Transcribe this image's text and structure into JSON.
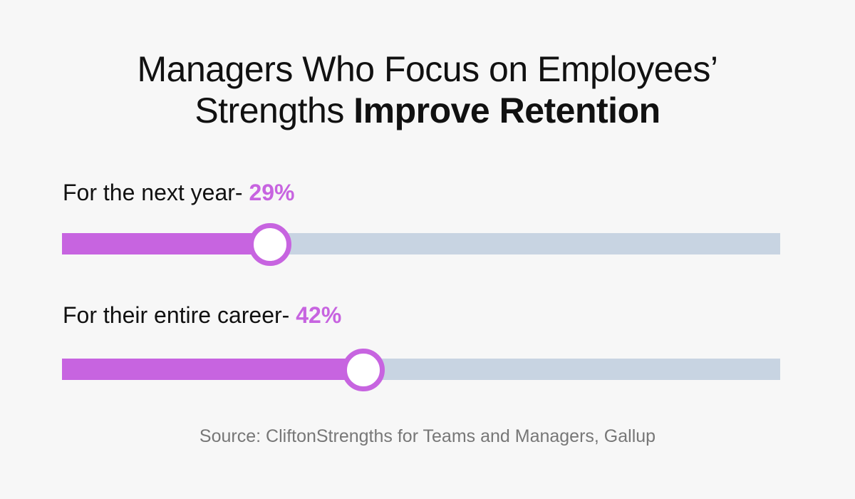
{
  "title": {
    "regular": "Managers Who Focus on Employees’",
    "line2_regular": "Strengths ",
    "bold": "Improve Retention"
  },
  "colors": {
    "accent": "#c764e0",
    "track": "#c8d4e2",
    "background": "#f7f7f7"
  },
  "chart_data": {
    "type": "bar",
    "title": "Managers Who Focus on Employees’ Strengths Improve Retention",
    "categories": [
      "For the next year",
      "For their entire career"
    ],
    "values": [
      29,
      42
    ],
    "ylim": [
      0,
      100
    ],
    "labels": [
      {
        "text": "For the next year- ",
        "value_text": "29%"
      },
      {
        "text": "For their entire career- ",
        "value_text": "42%"
      }
    ]
  },
  "source": "Source: CliftonStrengths for Teams and Managers, Gallup"
}
